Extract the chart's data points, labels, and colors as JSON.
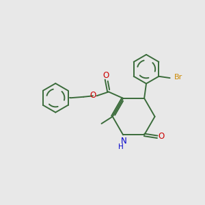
{
  "bg_color": "#e8e8e8",
  "bond_color": "#3a6b3a",
  "n_color": "#0000cc",
  "o_color": "#cc0000",
  "br_color": "#cc8800",
  "lw": 1.4,
  "figsize": [
    3.0,
    3.0
  ],
  "dpi": 100,
  "xlim": [
    0,
    10
  ],
  "ylim": [
    0,
    10
  ]
}
